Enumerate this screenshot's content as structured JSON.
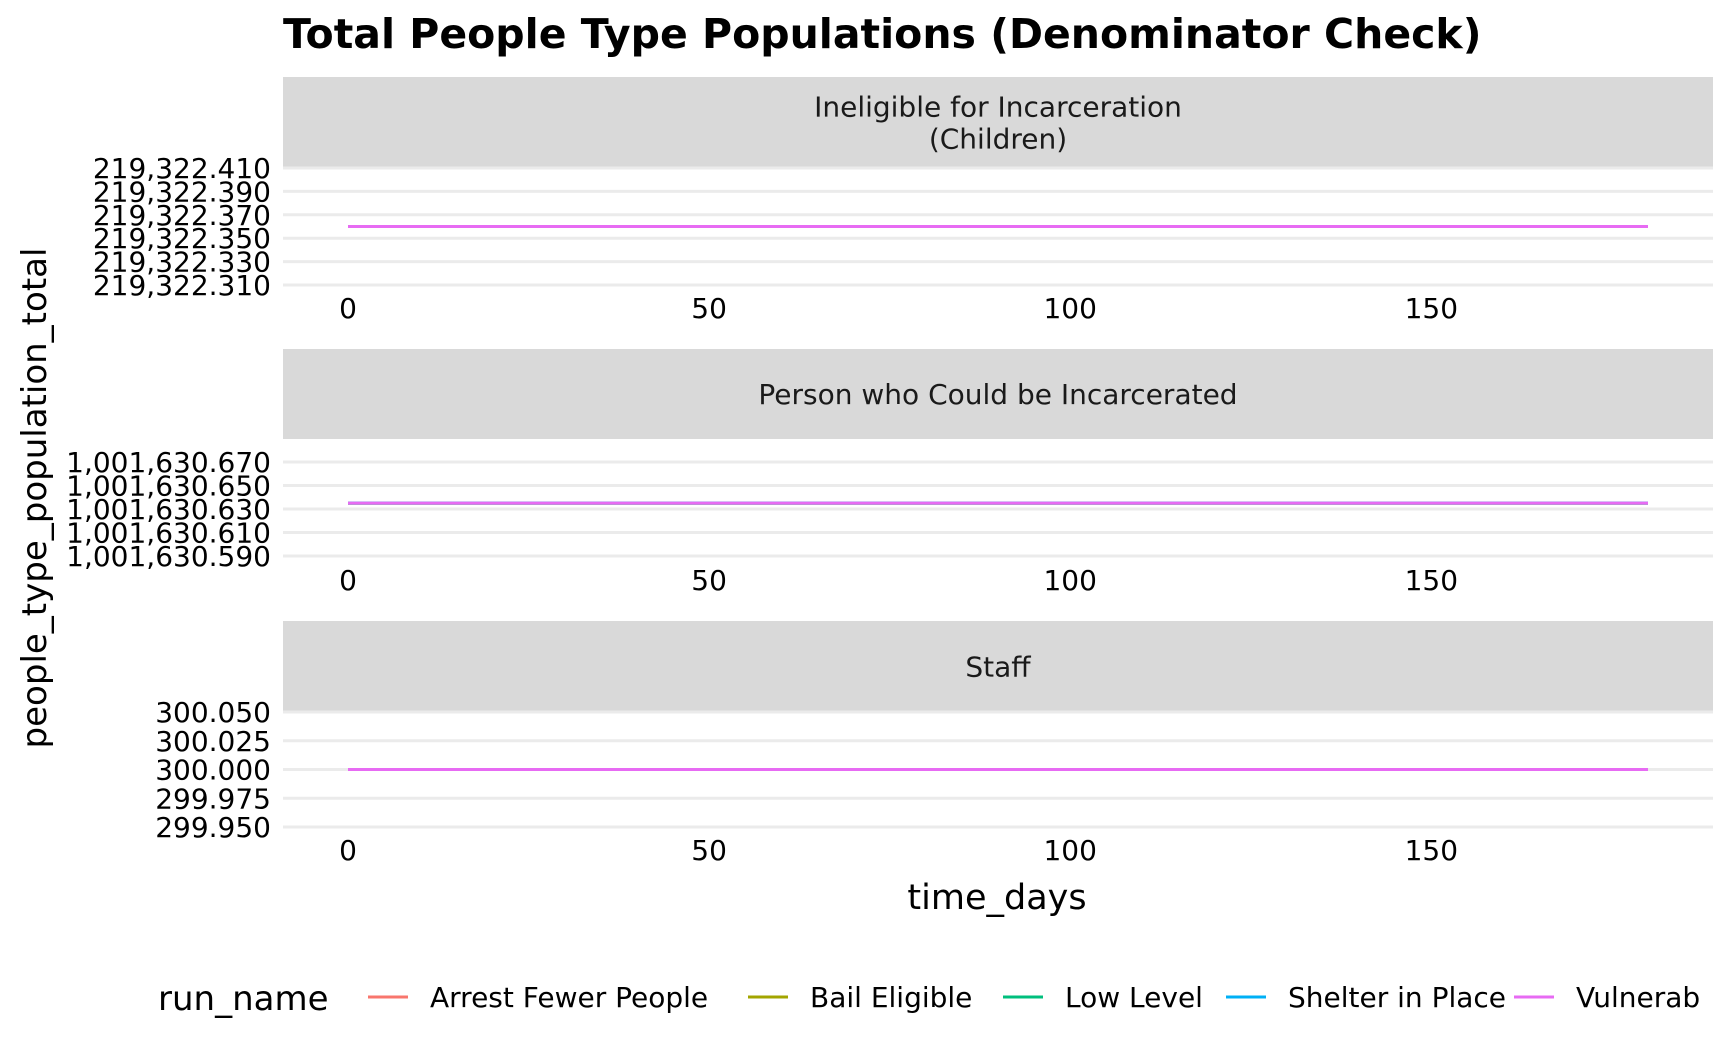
{
  "chart_data": {
    "type": "line",
    "title": "Total People Type Populations (Denominator Check)",
    "xlabel": "time_days",
    "ylabel": "people_type_population_total",
    "legend": {
      "title": "run_name",
      "position": "bottom",
      "entries": [
        {
          "name": "Arrest Fewer People",
          "color": "#F8766D"
        },
        {
          "name": "Bail Eligible",
          "color": "#A3A500"
        },
        {
          "name": "Low Level",
          "color": "#00BF7D"
        },
        {
          "name": "Shelter in Place",
          "color": "#00B0F6"
        },
        {
          "name": "Vulnerab",
          "color": "#E76BF3"
        }
      ]
    },
    "xlim": [
      -9,
      189
    ],
    "x_ticks": [
      0,
      50,
      100,
      150
    ],
    "x_tick_labels": [
      "0",
      "50",
      "100",
      "150"
    ],
    "grid": true,
    "panels": [
      {
        "strip": [
          "Ineligible for Incarceration",
          "(Children)"
        ],
        "ylim": [
          219322.31,
          219322.41
        ],
        "y_ticks": [
          219322.31,
          219322.33,
          219322.35,
          219322.37,
          219322.39,
          219322.41
        ],
        "y_tick_labels": [
          "219,322.310",
          "219,322.330",
          "219,322.350",
          "219,322.370",
          "219,322.390",
          "219,322.410"
        ],
        "series": [
          {
            "name": "Arrest Fewer People",
            "x": [
              0,
              180
            ],
            "y": [
              219322.36,
              219322.36
            ]
          },
          {
            "name": "Bail Eligible",
            "x": [
              0,
              180
            ],
            "y": [
              219322.36,
              219322.36
            ]
          },
          {
            "name": "Low Level",
            "x": [
              0,
              180
            ],
            "y": [
              219322.36,
              219322.36
            ]
          },
          {
            "name": "Shelter in Place",
            "x": [
              0,
              180
            ],
            "y": [
              219322.36,
              219322.36
            ]
          },
          {
            "name": "Vulnerab",
            "x": [
              0,
              180
            ],
            "y": [
              219322.36,
              219322.36
            ]
          }
        ]
      },
      {
        "strip": [
          "Person who Could be Incarcerated"
        ],
        "ylim": [
          1001630.59,
          1001630.67
        ],
        "y_ticks": [
          1001630.59,
          1001630.61,
          1001630.63,
          1001630.65,
          1001630.67
        ],
        "y_tick_labels": [
          "1,001,630.590",
          "1,001,630.610",
          "1,001,630.630",
          "1,001,630.650",
          "1,001,630.670"
        ],
        "series": [
          {
            "name": "Arrest Fewer People",
            "x": [
              0,
              180
            ],
            "y": [
              1001630.635,
              1001630.635
            ]
          },
          {
            "name": "Bail Eligible",
            "x": [
              0,
              180
            ],
            "y": [
              1001630.635,
              1001630.635
            ]
          },
          {
            "name": "Low Level",
            "x": [
              0,
              180
            ],
            "y": [
              1001630.635,
              1001630.635
            ]
          },
          {
            "name": "Shelter in Place",
            "x": [
              0,
              180
            ],
            "y": [
              1001630.635,
              1001630.635
            ]
          },
          {
            "name": "Vulnerab",
            "x": [
              0,
              180
            ],
            "y": [
              1001630.635,
              1001630.635
            ]
          }
        ]
      },
      {
        "strip": [
          "Staff"
        ],
        "ylim": [
          299.95,
          300.05
        ],
        "y_ticks": [
          299.95,
          299.975,
          300.0,
          300.025,
          300.05
        ],
        "y_tick_labels": [
          "299.950",
          "299.975",
          "300.000",
          "300.025",
          "300.050"
        ],
        "series": [
          {
            "name": "Arrest Fewer People",
            "x": [
              0,
              180
            ],
            "y": [
              300.0,
              300.0
            ]
          },
          {
            "name": "Bail Eligible",
            "x": [
              0,
              180
            ],
            "y": [
              300.0,
              300.0
            ]
          },
          {
            "name": "Low Level",
            "x": [
              0,
              180
            ],
            "y": [
              300.0,
              300.0
            ]
          },
          {
            "name": "Shelter in Place",
            "x": [
              0,
              180
            ],
            "y": [
              300.0,
              300.0
            ]
          },
          {
            "name": "Vulnerab",
            "x": [
              0,
              180
            ],
            "y": [
              300.0,
              300.0
            ]
          }
        ]
      }
    ]
  }
}
